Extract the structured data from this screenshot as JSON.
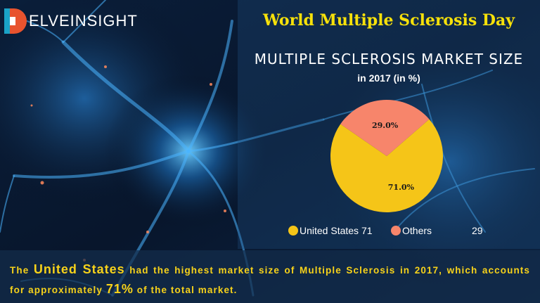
{
  "brand": {
    "logo_text": "ELVEINSIGHT",
    "logo_letter": "D",
    "logo_colors": [
      "#e8532e",
      "#1aa3c8",
      "#ffffff"
    ]
  },
  "banner": {
    "day_title": "World Multiple Sclerosis Day"
  },
  "chart_data": {
    "type": "pie",
    "title": "MULTIPLE SCLEROSIS MARKET SIZE",
    "subtitle": "in 2017 (in %)",
    "slices": [
      {
        "label": "United States",
        "value": 71,
        "display_label": "71.0%",
        "color": "#f5c518"
      },
      {
        "label": "Others",
        "value": 29,
        "display_label": "29.0%",
        "color": "#f7856b"
      }
    ],
    "legend": {
      "position": "bottom",
      "entries": [
        {
          "name": "United States 71",
          "color": "#f5c518"
        },
        {
          "name": "Others",
          "color": "#f7856b",
          "trailing_value": "29"
        }
      ]
    }
  },
  "caption": {
    "part1": "The ",
    "highlight1": "United States",
    "part2": " had the highest market size of Multiple Sclerosis in 2017, which accounts for approximately ",
    "highlight2": "71%",
    "part3": " of the total market."
  },
  "colors": {
    "accent_yellow": "#f7e10a",
    "caption_yellow": "#f7d21a",
    "background": "#050a18"
  }
}
